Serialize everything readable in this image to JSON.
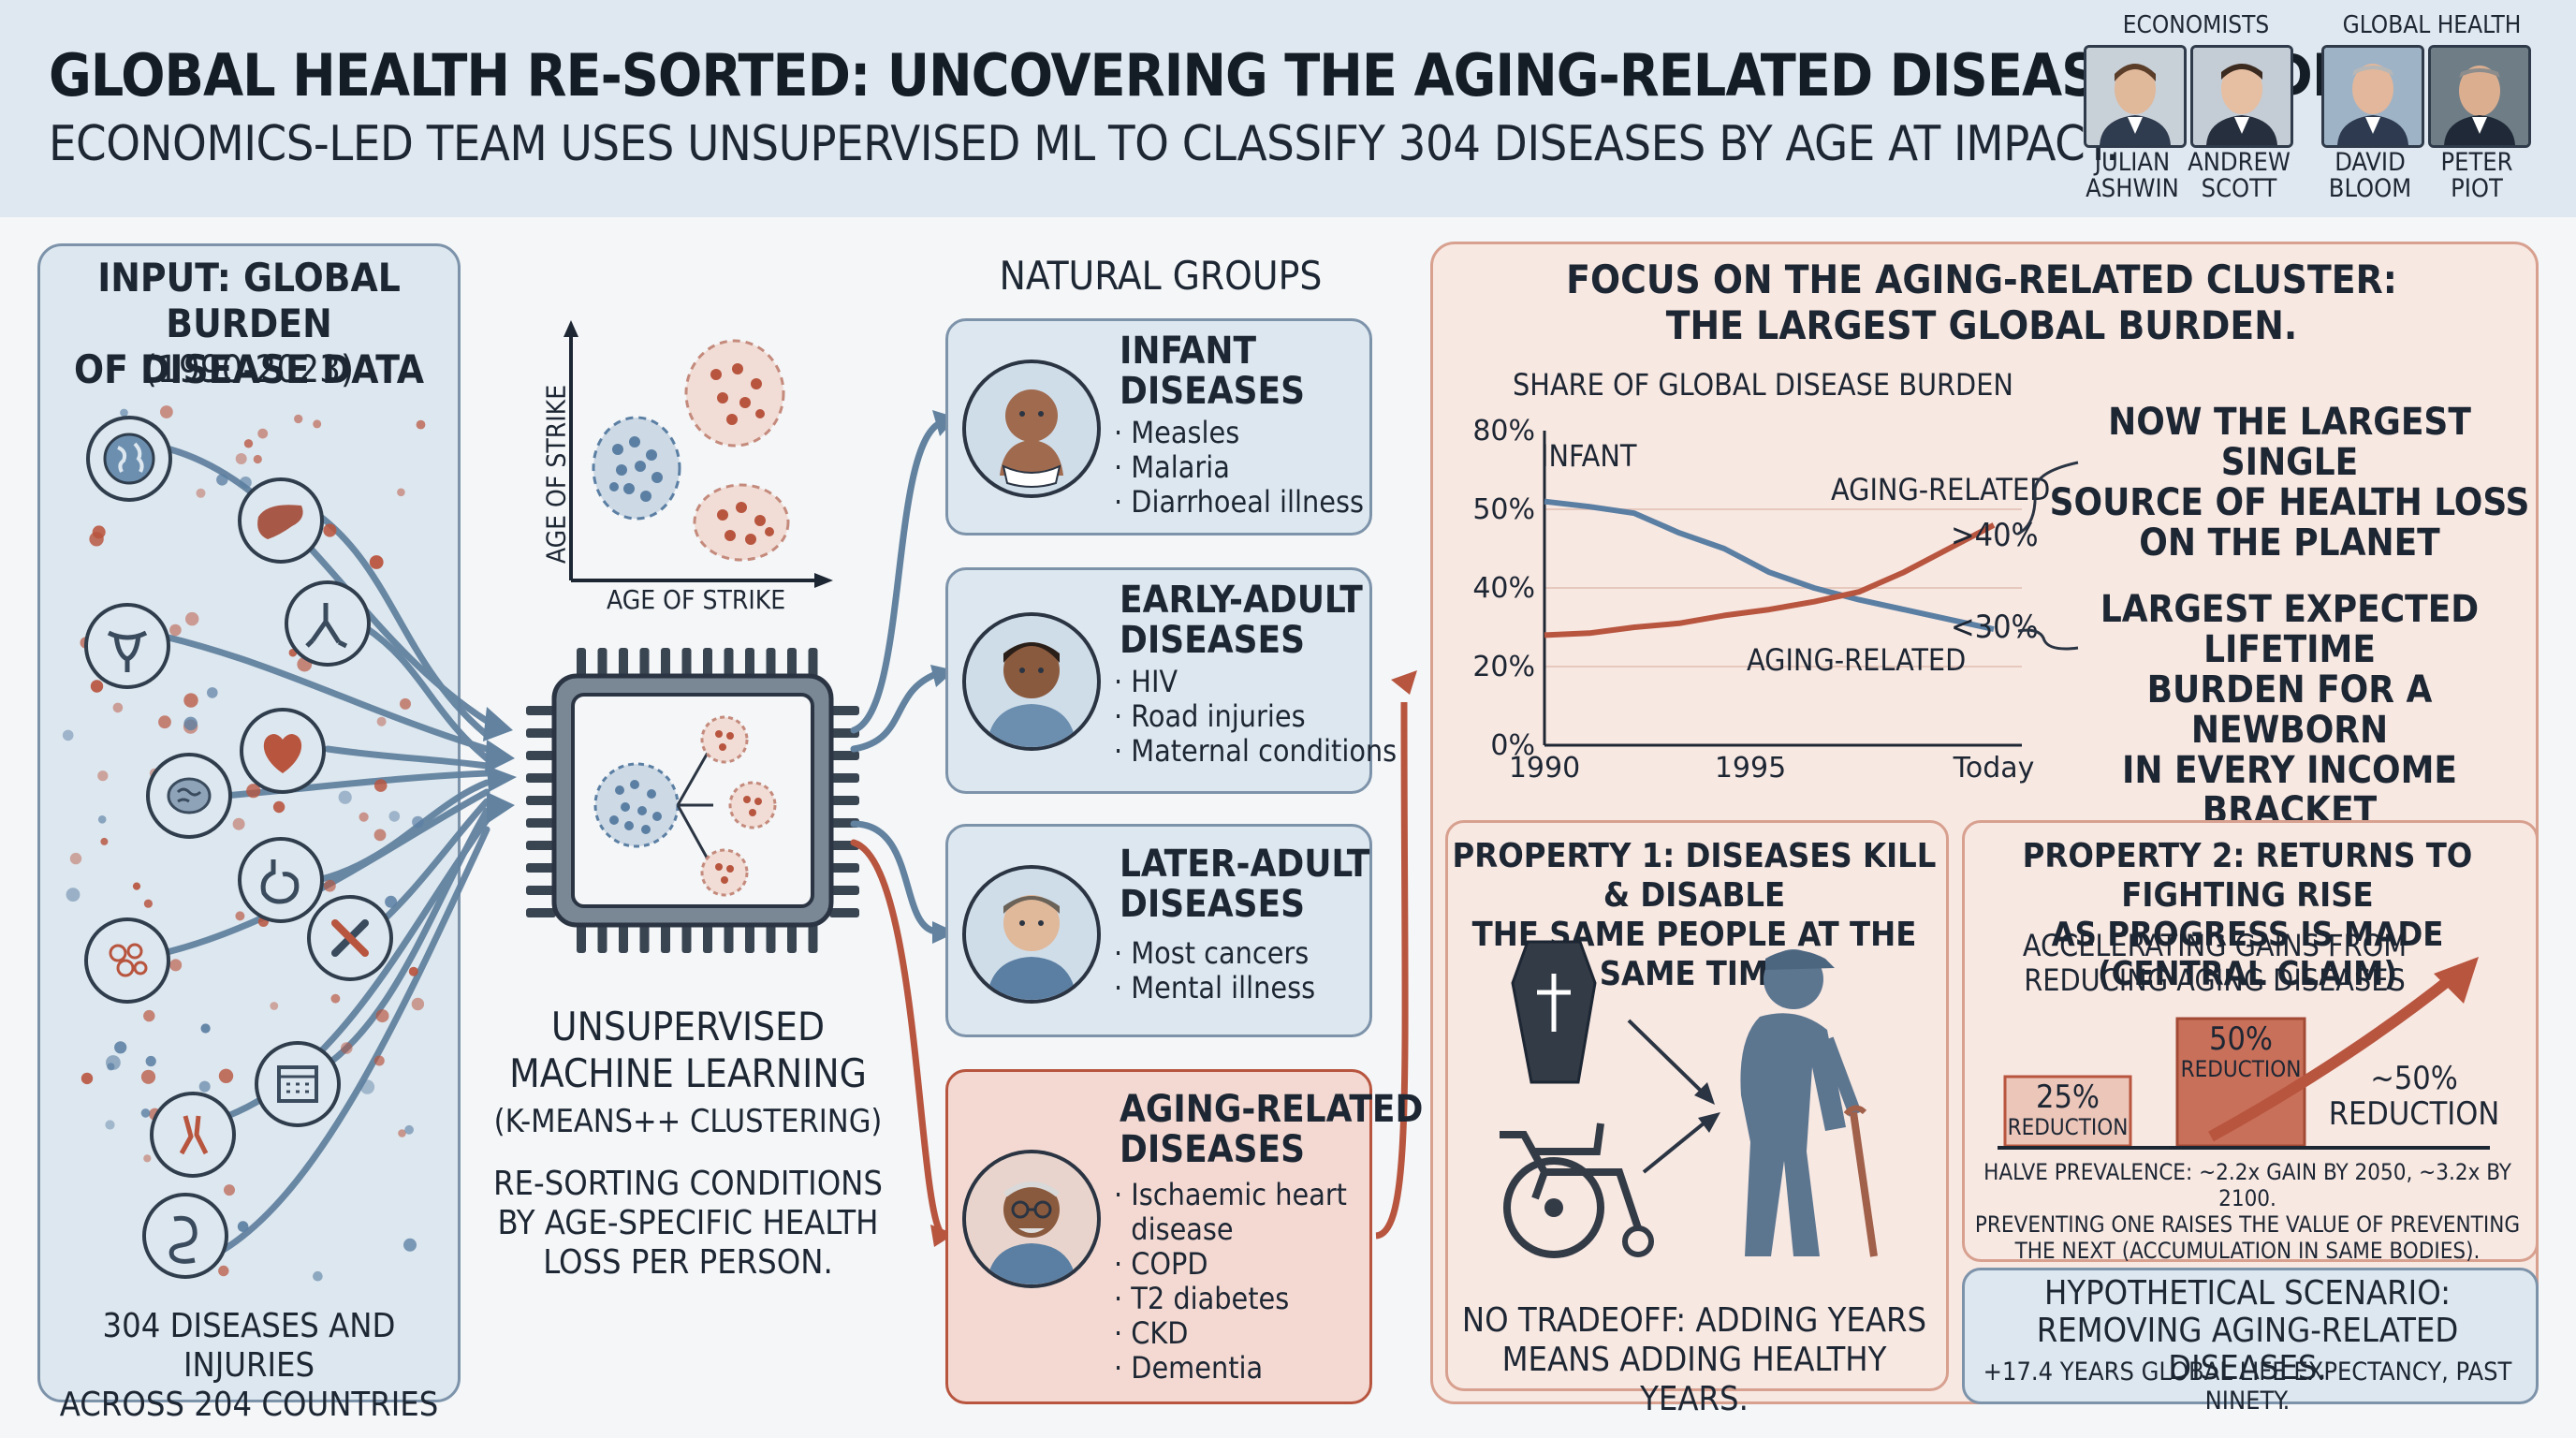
{
  "header": {
    "title": "GLOBAL HEALTH RE-SORTED: UNCOVERING THE AGING-RELATED DISEASE BURDEN.",
    "subtitle": "ECONOMICS-LED TEAM USES UNSUPERVISED ML TO CLASSIFY 304 DISEASES BY AGE AT IMPACT.",
    "groups": [
      "ECONOMISTS",
      "GLOBAL HEALTH"
    ],
    "people": [
      {
        "first": "JULIAN",
        "last": "ASHWIN"
      },
      {
        "first": "ANDREW",
        "last": "SCOTT"
      },
      {
        "first": "DAVID",
        "last": "BLOOM"
      },
      {
        "first": "PETER",
        "last": "PIOT"
      }
    ]
  },
  "input": {
    "title_1": "INPUT: GLOBAL BURDEN",
    "title_2": "OF DISEASE DATA",
    "years": "(1990-2023)",
    "footer_1": "304 DISEASES AND INJURIES",
    "footer_2": "ACROSS 204 COUNTRIES",
    "icons": [
      "globe-icon",
      "liver-icon",
      "lungs-icon",
      "uterus-icon",
      "heart-icon",
      "brain-icon",
      "stomach-icon",
      "bone-icon",
      "cells-icon",
      "calendar-icon",
      "joint-icon",
      "intestine-icon",
      "virus-icon"
    ]
  },
  "ml": {
    "scatter_xlabel": "AGE OF STRIKE",
    "scatter_ylabel": "AGE OF STRIKE",
    "title_1": "UNSUPERVISED",
    "title_2": "MACHINE LEARNING",
    "subtitle": "(K-MEANS++ CLUSTERING)",
    "desc_1": "RE-SORTING CONDITIONS",
    "desc_2": "BY AGE-SPECIFIC HEALTH",
    "desc_3": "LOSS PER PERSON."
  },
  "groups": {
    "heading": "NATURAL GROUPS",
    "infant": {
      "title_1": "INFANT",
      "title_2": "DISEASES",
      "items": [
        "Measles",
        "Malaria",
        "Diarrhoeal illness"
      ]
    },
    "early": {
      "title_1": "EARLY-ADULT",
      "title_2": "DISEASES",
      "items": [
        "HIV",
        "Road injuries",
        "Maternal conditions"
      ]
    },
    "later": {
      "title_1": "LATER-ADULT",
      "title_2": "DISEASES",
      "items": [
        "Most cancers",
        "Mental illness"
      ]
    },
    "aging": {
      "title_1": "AGING-RELATED",
      "title_2": "DISEASES",
      "items": [
        "Ischaemic heart",
        "disease",
        "COPD",
        "T2 diabetes",
        "CKD",
        "Dementia"
      ]
    }
  },
  "focus": {
    "title_1": "FOCUS ON THE AGING-RELATED CLUSTER:",
    "title_2": "THE LARGEST GLOBAL BURDEN.",
    "callout_top": [
      "NOW THE LARGEST SINGLE",
      "SOURCE OF HEALTH LOSS",
      "ON THE PLANET"
    ],
    "callout_bottom": [
      "LARGEST EXPECTED LIFETIME",
      "BURDEN FOR A NEWBORN",
      "IN EVERY INCOME",
      "BRACKET"
    ]
  },
  "chart_data": {
    "type": "line",
    "title": "SHARE OF GLOBAL DISEASE BURDEN",
    "y_ticks": [
      "80%",
      "50%",
      "40%",
      "20%",
      "0%"
    ],
    "x_ticks": [
      "1990",
      "1995",
      "Today"
    ],
    "series": [
      {
        "name": "INFANT",
        "color": "#5b7fa3",
        "values": [
          53,
          51,
          49.5,
          47,
          45,
          42,
          40,
          37,
          34.5,
          32,
          29.5
        ]
      },
      {
        "name": "AGING-RELATED",
        "color": "#b8553f",
        "values": [
          28,
          28.5,
          30,
          31,
          33,
          34.5,
          36.5,
          39,
          42,
          45,
          48
        ]
      }
    ],
    "aging_label_top": "AGING-RELATED",
    "aging_label_bottom": "AGING-RELATED",
    "end_label_high": ">40%",
    "end_label_low": "<30%"
  },
  "property1": {
    "title_1": "PROPERTY 1: DISEASES KILL & DISABLE",
    "title_2": "THE SAME PEOPLE AT THE SAME TIME",
    "footer_1": "NO TRADEOFF: ADDING YEARS",
    "footer_2": "MEANS ADDING HEALTHY YEARS."
  },
  "property2": {
    "title_1": "PROPERTY 2: RETURNS TO FIGHTING RISE",
    "title_2": "AS PROGRESS IS MADE (CENTRAL CLAIM)",
    "sub_1": "ACCELERATING GAINS FROM",
    "sub_2": "REDUCING AGING DISEASES",
    "bar1_pct": "25%",
    "bar1_label": "REDUCTION",
    "bar2_pct": "50%",
    "bar2_label": "REDUCTION",
    "bar3_pct": "~50%",
    "bar3_label": "REDUCTION",
    "note_1": "HALVE PREVALENCE: ~2.2x GAIN BY 2050, ~3.2x BY 2100.",
    "note_2": "PREVENTING ONE RAISES THE VALUE OF PREVENTING",
    "note_3": "THE NEXT (ACCUMULATION IN SAME BODIES)."
  },
  "scenario": {
    "title_1": "HYPOTHETICAL SCENARIO:",
    "title_2": "REMOVING AGING-RELATED DISEASES.",
    "text": "+17.4 YEARS GLOBAL LIFE EXPECTANCY, PAST NINETY."
  }
}
